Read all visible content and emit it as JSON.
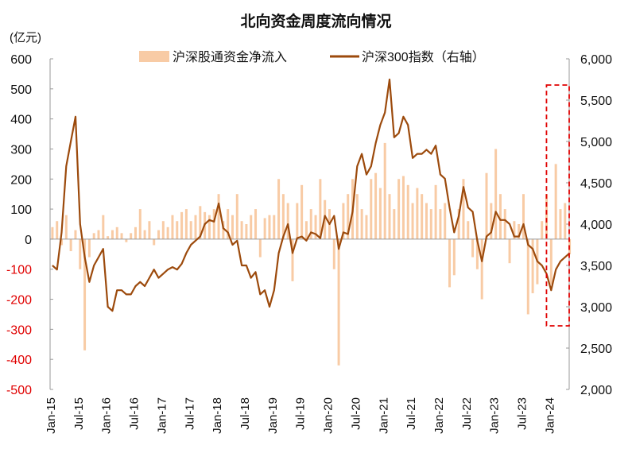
{
  "chart_data": {
    "type": "bar+line",
    "title": "北向资金周度流向情况",
    "left_unit": "(亿元)",
    "legend": {
      "placement": "top",
      "entries": [
        "沪深股通资金净流入",
        "沪深300指数（右轴）"
      ]
    },
    "colors": {
      "bars": "#f8cba5",
      "line": "#9c4a0c",
      "negative_tick": "#e00000",
      "highlight_box": "#e00000"
    },
    "left_axis": {
      "ylim": [
        -500,
        600
      ],
      "ticks": [
        "600",
        "500",
        "400",
        "300",
        "200",
        "100",
        "0",
        "-100",
        "-200",
        "-300",
        "-400",
        "-500"
      ]
    },
    "right_axis": {
      "ylim": [
        2000,
        6000
      ],
      "ticks": [
        "6,000",
        "5,500",
        "5,000",
        "4,500",
        "4,000",
        "3,500",
        "3,000",
        "2,500",
        "2,000"
      ]
    },
    "x_ticks": [
      "Jan-15",
      "Jul-15",
      "Jan-16",
      "Jul-16",
      "Jan-17",
      "Jul-17",
      "Jan-18",
      "Jul-18",
      "Jan-19",
      "Jul-19",
      "Jan-20",
      "Jul-20",
      "Jan-21",
      "Jul-21",
      "Jan-22",
      "Jul-22",
      "Jan-23",
      "Jul-23",
      "Jan-24"
    ],
    "x_start": "2015-01",
    "x_end": "2024-05",
    "highlight_period": [
      "2024-01",
      "2024-05"
    ],
    "series": [
      {
        "name": "沪深股通资金净流入",
        "axis": "left",
        "kind": "bar",
        "frequency": "monthly-approx",
        "values": [
          40,
          60,
          -20,
          80,
          -40,
          30,
          -100,
          -370,
          -60,
          20,
          30,
          80,
          10,
          30,
          40,
          20,
          -10,
          20,
          40,
          100,
          30,
          60,
          -20,
          30,
          60,
          40,
          80,
          60,
          90,
          100,
          60,
          80,
          110,
          90,
          80,
          100,
          150,
          60,
          100,
          80,
          150,
          60,
          50,
          80,
          100,
          -60,
          70,
          80,
          80,
          200,
          150,
          120,
          -140,
          120,
          180,
          60,
          100,
          80,
          200,
          130,
          100,
          -100,
          -420,
          120,
          150,
          200,
          150,
          100,
          80,
          200,
          220,
          170,
          320,
          150,
          100,
          200,
          210,
          180,
          120,
          170,
          150,
          120,
          100,
          180,
          100,
          120,
          -160,
          -120,
          100,
          200,
          60,
          -60,
          -100,
          -200,
          220,
          120,
          300,
          150,
          100,
          -80,
          60,
          50,
          150,
          -250,
          -180,
          -150,
          60,
          150,
          -150,
          250,
          100,
          120,
          -50
        ]
      },
      {
        "name": "沪深300指数（右轴）",
        "axis": "right",
        "kind": "line",
        "frequency": "monthly-approx",
        "values": [
          3500,
          3450,
          3900,
          4700,
          5000,
          5300,
          4000,
          3600,
          3300,
          3500,
          3600,
          3700,
          3000,
          2950,
          3200,
          3200,
          3150,
          3150,
          3250,
          3300,
          3250,
          3350,
          3450,
          3350,
          3400,
          3450,
          3480,
          3450,
          3520,
          3650,
          3750,
          3800,
          3850,
          4000,
          4050,
          4030,
          4250,
          3950,
          3900,
          3750,
          3800,
          3500,
          3500,
          3350,
          3420,
          3150,
          3200,
          3000,
          3200,
          3650,
          3850,
          4000,
          3650,
          3830,
          3850,
          3800,
          3900,
          3880,
          3830,
          4100,
          4000,
          4100,
          3700,
          3900,
          3880,
          4150,
          4700,
          4850,
          4600,
          4700,
          4980,
          5200,
          5350,
          5750,
          5050,
          5100,
          5300,
          5200,
          4800,
          4850,
          4850,
          4900,
          4850,
          4950,
          4600,
          4550,
          4200,
          3900,
          4100,
          4450,
          4200,
          4150,
          3800,
          3550,
          3850,
          3900,
          4150,
          4050,
          4050,
          4000,
          3850,
          3850,
          4000,
          3750,
          3700,
          3550,
          3500,
          3400,
          3200,
          3450,
          3550,
          3600,
          3650
        ]
      }
    ]
  }
}
